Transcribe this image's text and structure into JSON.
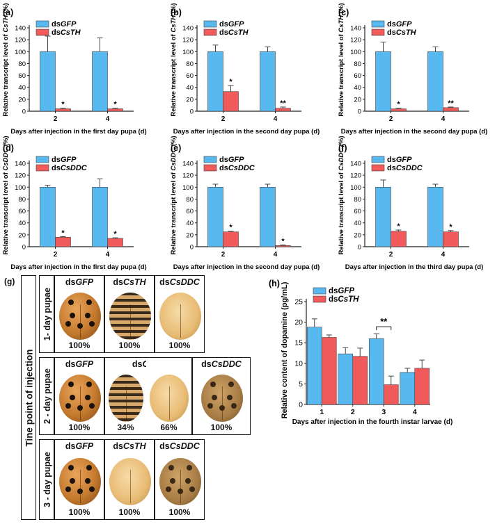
{
  "panels": [
    {
      "tag": "(a)",
      "ylabel_pre": "Relative transcript level of ",
      "ylabel_gene": "CsTH",
      "ylabel_post": " (%)",
      "xlabel": "Days after injection in the first day pupa (d)",
      "legend": [
        {
          "pre": "ds",
          "it": "GFP"
        },
        {
          "pre": "ds",
          "it": "CsTH"
        }
      ]
    },
    {
      "tag": "(b)",
      "ylabel_pre": "Relative transcript level of ",
      "ylabel_gene": "CsTH",
      "ylabel_post": " (%)",
      "xlabel": "Days after injection in the second day pupa (d)",
      "legend": [
        {
          "pre": "ds",
          "it": "GFP"
        },
        {
          "pre": "ds",
          "it": "CsTH"
        }
      ]
    },
    {
      "tag": "(c)",
      "ylabel_pre": "Relative transcript level of ",
      "ylabel_gene": "CsTH",
      "ylabel_post": " (%)",
      "xlabel": "Days after injection in the second day pupa (d)",
      "legend": [
        {
          "pre": "ds",
          "it": "GFP"
        },
        {
          "pre": "ds",
          "it": "CsTH"
        }
      ]
    },
    {
      "tag": "(d)",
      "ylabel_pre": "Relative transcript level of ",
      "ylabel_gene": "CsDDC",
      "ylabel_post": " (%)",
      "xlabel": "Days after injection in the first day pupa (d)",
      "legend": [
        {
          "pre": "ds",
          "it": "GFP"
        },
        {
          "pre": "ds",
          "it": "CsDDC"
        }
      ]
    },
    {
      "tag": "(e)",
      "ylabel_pre": "Relative transcript level of ",
      "ylabel_gene": "CsDDC",
      "ylabel_post": " (%)",
      "xlabel": "Days after injection in the second day pupa (d)",
      "legend": [
        {
          "pre": "ds",
          "it": "GFP"
        },
        {
          "pre": "ds",
          "it": "CsDDC"
        }
      ]
    },
    {
      "tag": "(f)",
      "ylabel_pre": "Relative transcript level of ",
      "ylabel_gene": "CsDDC",
      "ylabel_post": " (%)",
      "xlabel": "Days after injection in the third day pupa (d)",
      "legend": [
        {
          "pre": "ds",
          "it": "GFP"
        },
        {
          "pre": "ds",
          "it": "CsDDC"
        }
      ]
    },
    {
      "tag": "(h)",
      "ylabel_pre": "Relative content of dopamine (pg/mL)",
      "ylabel_gene": "",
      "ylabel_post": "",
      "xlabel": "Days after injection in the fourth instar larvae  (d)",
      "legend": [
        {
          "pre": "ds",
          "it": "GFP"
        },
        {
          "pre": "ds",
          "it": "CsTH"
        }
      ]
    }
  ],
  "chart_data": [
    {
      "type": "bar",
      "categories": [
        "2",
        "4"
      ],
      "ylim": [
        0,
        140
      ],
      "yticks": [
        0,
        20,
        40,
        60,
        80,
        100,
        120,
        140
      ],
      "series": [
        {
          "name": "dsGFP",
          "values": [
            100,
            100
          ],
          "err": [
            26,
            23
          ]
        },
        {
          "name": "dsCsTH",
          "values": [
            4,
            4
          ],
          "err": [
            1,
            1
          ]
        }
      ],
      "sig": [
        {
          "cat": 0,
          "series": 1,
          "text": "*"
        },
        {
          "cat": 1,
          "series": 1,
          "text": "*"
        }
      ]
    },
    {
      "type": "bar",
      "categories": [
        "2",
        "4"
      ],
      "ylim": [
        0,
        140
      ],
      "yticks": [
        0,
        20,
        40,
        60,
        80,
        100,
        120,
        140
      ],
      "series": [
        {
          "name": "dsGFP",
          "values": [
            100,
            100
          ],
          "err": [
            11,
            8
          ]
        },
        {
          "name": "dsCsTH",
          "values": [
            33,
            5
          ],
          "err": [
            10,
            2
          ]
        }
      ],
      "sig": [
        {
          "cat": 0,
          "series": 1,
          "text": "*"
        },
        {
          "cat": 1,
          "series": 1,
          "text": "**"
        }
      ]
    },
    {
      "type": "bar",
      "categories": [
        "2",
        "4"
      ],
      "ylim": [
        0,
        140
      ],
      "yticks": [
        0,
        20,
        40,
        60,
        80,
        100,
        120,
        140
      ],
      "series": [
        {
          "name": "dsGFP",
          "values": [
            100,
            100
          ],
          "err": [
            16,
            8
          ]
        },
        {
          "name": "dsCsTH",
          "values": [
            4,
            6
          ],
          "err": [
            1,
            1
          ]
        }
      ],
      "sig": [
        {
          "cat": 0,
          "series": 1,
          "text": "*"
        },
        {
          "cat": 1,
          "series": 1,
          "text": "**"
        }
      ]
    },
    {
      "type": "bar",
      "categories": [
        "2",
        "4"
      ],
      "ylim": [
        0,
        140
      ],
      "yticks": [
        0,
        20,
        40,
        60,
        80,
        100,
        120,
        140
      ],
      "series": [
        {
          "name": "dsGFP",
          "values": [
            100,
            100
          ],
          "err": [
            3,
            14
          ]
        },
        {
          "name": "dsCsDDC",
          "values": [
            16,
            14
          ],
          "err": [
            1,
            1
          ]
        }
      ],
      "sig": [
        {
          "cat": 0,
          "series": 1,
          "text": "*"
        },
        {
          "cat": 1,
          "series": 1,
          "text": "*"
        }
      ]
    },
    {
      "type": "bar",
      "categories": [
        "2",
        "4"
      ],
      "ylim": [
        0,
        140
      ],
      "yticks": [
        0,
        20,
        40,
        60,
        80,
        100,
        120,
        140
      ],
      "series": [
        {
          "name": "dsGFP",
          "values": [
            100,
            100
          ],
          "err": [
            5,
            5
          ]
        },
        {
          "name": "dsCsDDC",
          "values": [
            25,
            2
          ],
          "err": [
            1,
            1
          ]
        }
      ],
      "sig": [
        {
          "cat": 0,
          "series": 1,
          "text": "*"
        },
        {
          "cat": 1,
          "series": 1,
          "text": "*"
        }
      ]
    },
    {
      "type": "bar",
      "categories": [
        "2",
        "4"
      ],
      "ylim": [
        0,
        140
      ],
      "yticks": [
        0,
        20,
        40,
        60,
        80,
        100,
        120,
        140
      ],
      "series": [
        {
          "name": "dsGFP",
          "values": [
            100,
            100
          ],
          "err": [
            12,
            5
          ]
        },
        {
          "name": "dsCsDDC",
          "values": [
            26,
            25
          ],
          "err": [
            2,
            2
          ]
        }
      ],
      "sig": [
        {
          "cat": 0,
          "series": 1,
          "text": "*"
        },
        {
          "cat": 1,
          "series": 1,
          "text": "*"
        }
      ]
    },
    {
      "type": "bar",
      "categories": [
        "1",
        "2",
        "3",
        "4"
      ],
      "ylim": [
        0,
        25
      ],
      "yticks": [
        0,
        5,
        10,
        15,
        20,
        25
      ],
      "series": [
        {
          "name": "dsGFP",
          "values": [
            18.8,
            12.3,
            16,
            7.8
          ],
          "err": [
            2,
            1.5,
            1.2,
            1
          ]
        },
        {
          "name": "dsCsTH",
          "values": [
            16.3,
            11.7,
            4.8,
            8.8
          ],
          "err": [
            0.6,
            2,
            2.1,
            2
          ]
        }
      ],
      "sig": [
        {
          "cat": 2,
          "series": "bracket",
          "text": "**"
        }
      ]
    }
  ],
  "colors": {
    "gfp": "#58b8f0",
    "treat": "#f05a5a",
    "axis": "#222222"
  },
  "grid_g": {
    "tag": "(g)",
    "side_label": "Tine point of injection",
    "rows": [
      {
        "label": "1- day pupae",
        "cells": [
          {
            "name_pre": "ds",
            "name_it": "GFP",
            "pct": "100%",
            "look": "orange-spotted"
          },
          {
            "name_pre": "ds",
            "name_it": "CsTH",
            "pct": "100%",
            "look": "striped-pupa"
          },
          {
            "name_pre": "ds",
            "name_it": "CsDDC",
            "pct": "100%",
            "look": "pale-yellow"
          }
        ]
      },
      {
        "label": "2 - day pupae",
        "cells": [
          {
            "name_pre": "ds",
            "name_it": "GFP",
            "pct": "100%",
            "look": "orange-spotted"
          },
          {
            "name_pre": "ds",
            "name_it": "CsTH",
            "pct": "34%",
            "look": "striped-pupa"
          },
          {
            "name_pre": "",
            "name_it": "",
            "pct": "66%",
            "look": "pale-yellow"
          },
          {
            "name_pre": "ds",
            "name_it": "CsDDC",
            "pct": "100%",
            "look": "tan-spotted"
          }
        ]
      },
      {
        "label": "3 - day pupae",
        "cells": [
          {
            "name_pre": "ds",
            "name_it": "GFP",
            "pct": "100%",
            "look": "orange-spotted"
          },
          {
            "name_pre": "ds",
            "name_it": "CsTH",
            "pct": "100%",
            "look": "pale-yellow"
          },
          {
            "name_pre": "ds",
            "name_it": "CsDDC",
            "pct": "100%",
            "look": "tan-spotted"
          }
        ]
      }
    ]
  }
}
